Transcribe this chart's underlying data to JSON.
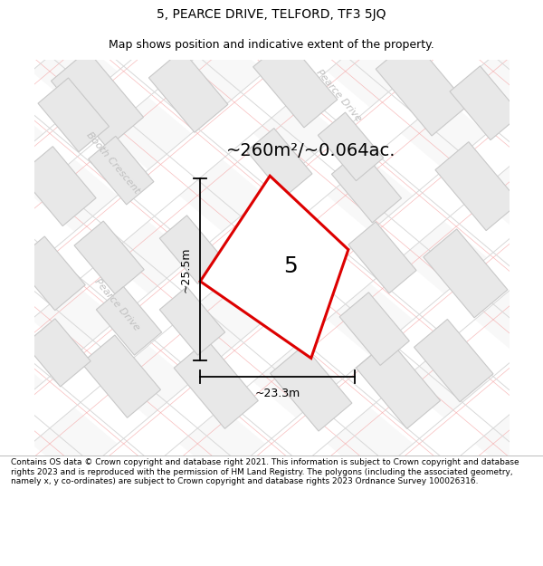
{
  "title": "5, PEARCE DRIVE, TELFORD, TF3 5JQ",
  "subtitle": "Map shows position and indicative extent of the property.",
  "area_label": "~260m²/~0.064ac.",
  "plot_number": "5",
  "dim_width": "~23.3m",
  "dim_height": "~25.5m",
  "footer": "Contains OS data © Crown copyright and database right 2021. This information is subject to Crown copyright and database rights 2023 and is reproduced with the permission of HM Land Registry. The polygons (including the associated geometry, namely x, y co-ordinates) are subject to Crown copyright and database rights 2023 Ordnance Survey 100026316.",
  "bg_color": "#ffffff",
  "map_bg": "#ffffff",
  "building_fill": "#e8e8e8",
  "building_edge_inner": "#c8c8c8",
  "building_edge_pink": "#f0b0b0",
  "plot_fill": "#ffffff",
  "plot_edge": "#dd0000",
  "road_label_color": "#c0c0c0",
  "title_color": "#000000",
  "footer_color": "#000000",
  "title_fontsize": 10,
  "subtitle_fontsize": 9,
  "area_fontsize": 14,
  "plot_num_fontsize": 18,
  "dim_fontsize": 9,
  "road_label_fontsize": 8
}
